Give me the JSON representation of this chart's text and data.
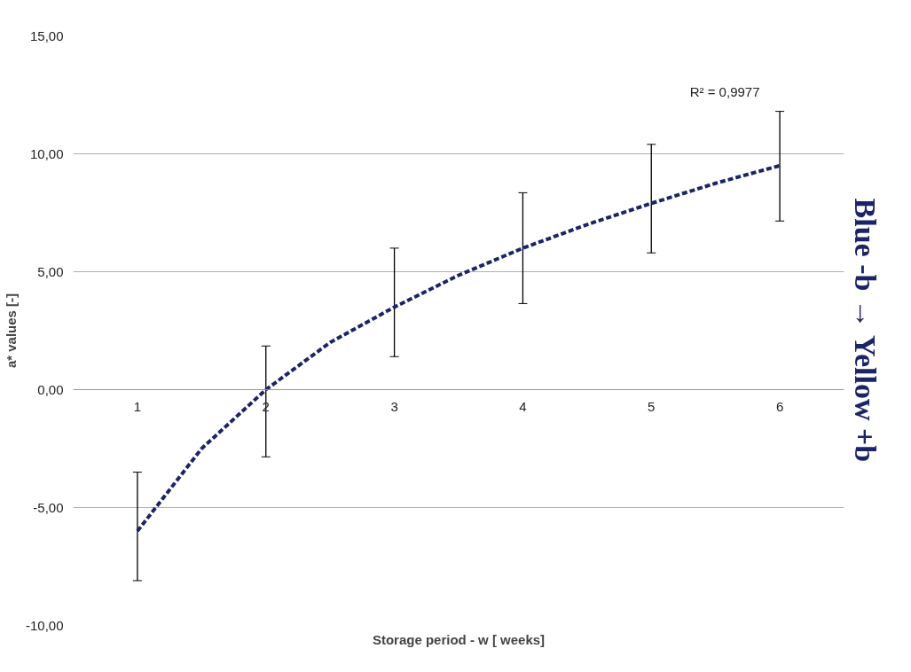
{
  "chart_data": {
    "type": "line",
    "xlabel": "Storage period - w [ weeks]",
    "ylabel": "a* values [-]",
    "annotations": [
      "R² = 0,9977",
      "Blue -b → Yellow +b"
    ],
    "x": [
      1,
      1.5,
      2,
      2.5,
      3,
      3.5,
      4,
      4.5,
      5,
      5.5,
      6
    ],
    "xlim": [
      0.5,
      6.5
    ],
    "xticks": [
      1,
      2,
      3,
      4,
      5,
      6
    ],
    "ylim": [
      -10,
      15
    ],
    "yticks": [
      {
        "value": -10,
        "label": "-10,00"
      },
      {
        "value": -5,
        "label": "-5,00"
      },
      {
        "value": 0,
        "label": "0,00"
      },
      {
        "value": 5,
        "label": "5,00"
      },
      {
        "value": 10,
        "label": "10,00"
      },
      {
        "value": 15,
        "label": "15,00"
      }
    ],
    "series": [
      {
        "color": "#1b2466",
        "values": [
          -6.0,
          -2.5,
          0.0,
          2.0,
          3.5,
          4.85,
          6.0,
          7.0,
          7.9,
          8.75,
          9.5
        ],
        "errors": [
          [
            -8.1,
            -3.5
          ],
          null,
          [
            -2.85,
            1.85
          ],
          null,
          [
            1.4,
            6.0
          ],
          null,
          [
            3.65,
            8.35
          ],
          null,
          [
            5.8,
            10.4
          ],
          null,
          [
            7.15,
            11.8
          ]
        ]
      }
    ],
    "line_style": "dashed",
    "marker": "none",
    "grid": "y"
  }
}
